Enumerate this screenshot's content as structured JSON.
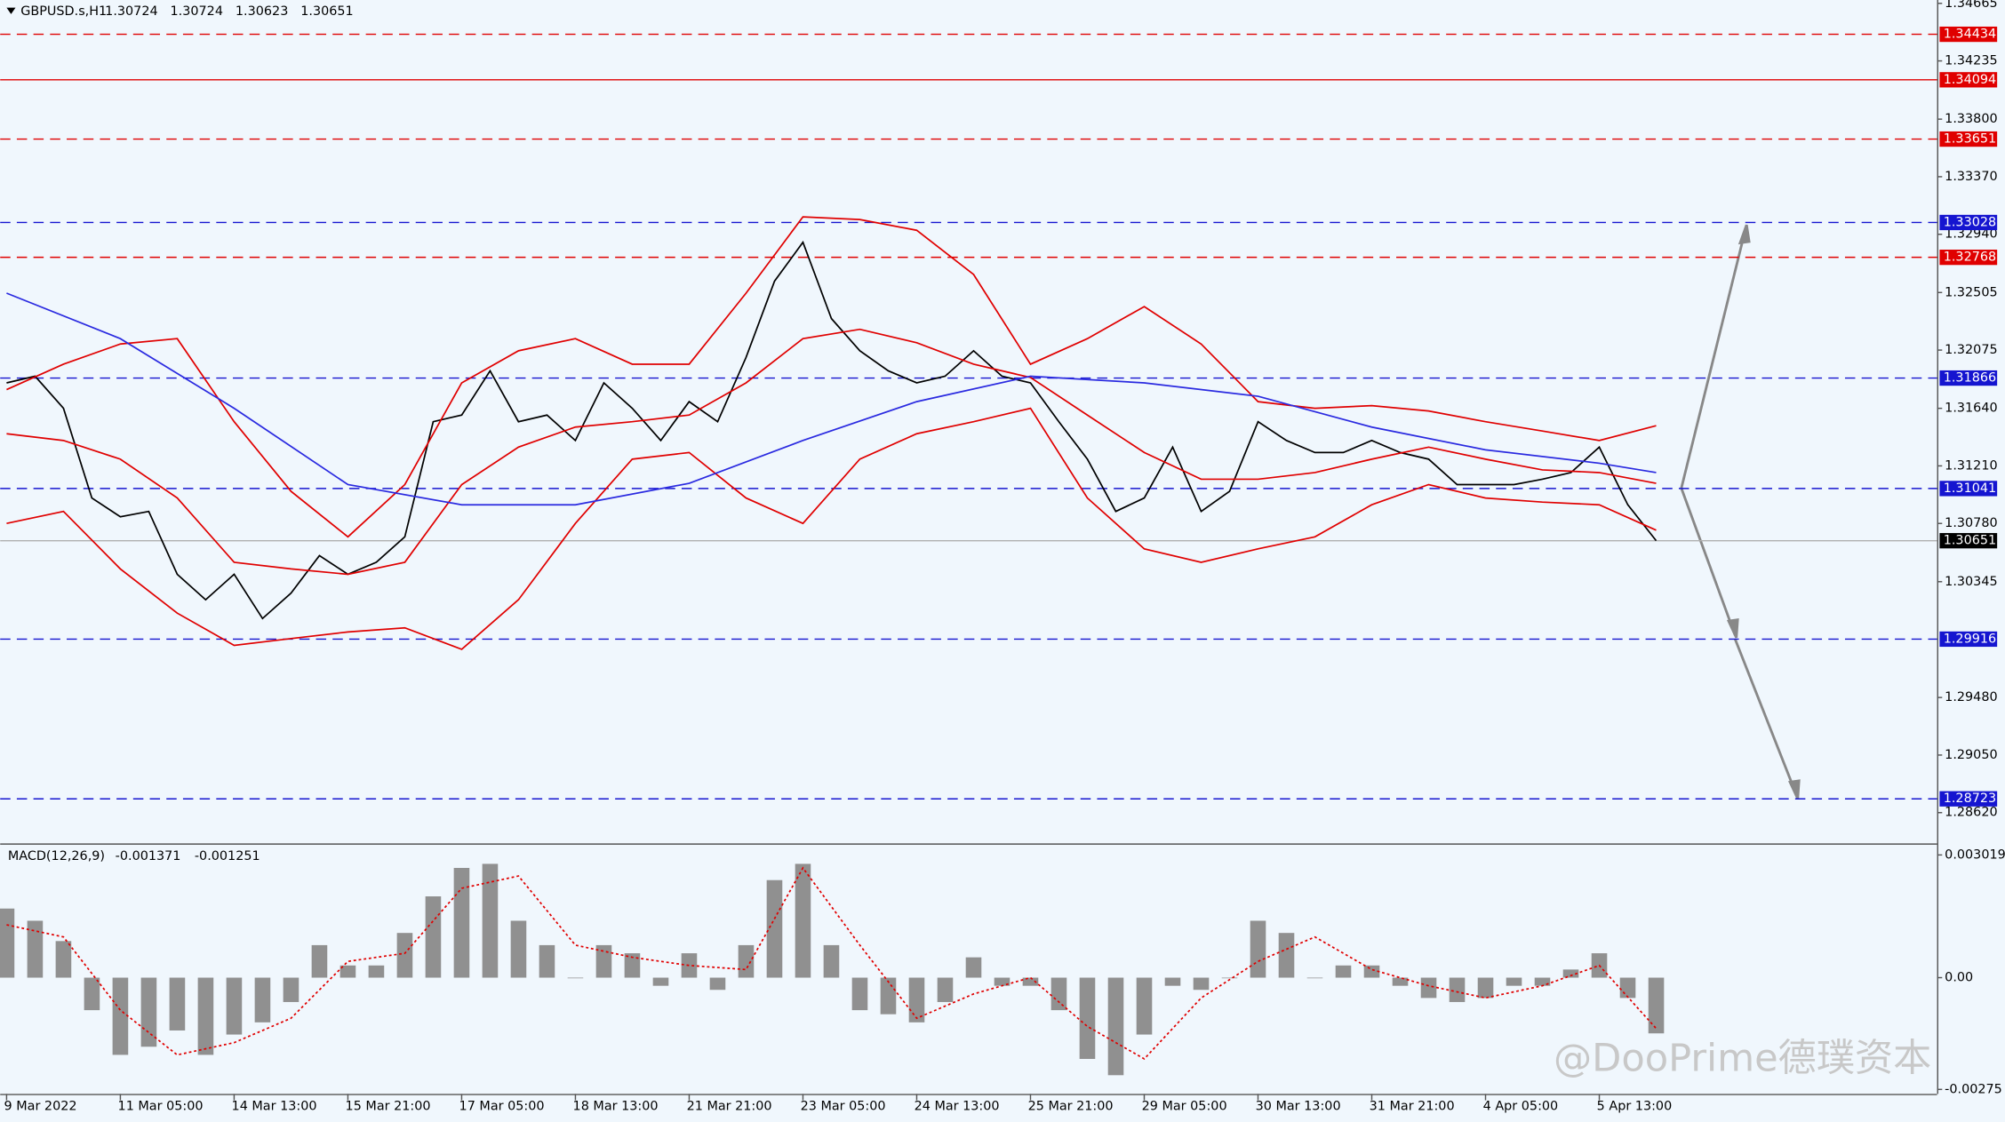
{
  "chart_data": [
    {
      "type": "price",
      "title": "GBPUSD.s,H1",
      "ohlc": [
        1.30724,
        1.30724,
        1.30623,
        1.30651
      ],
      "xlim": [
        -1.8,
        543
      ],
      "ylim": [
        1.2839,
        1.3469
      ],
      "xticks": [
        {
          "value": 0,
          "label": "9 Mar 2022"
        },
        {
          "value": 32,
          "label": "11 Mar 05:00"
        },
        {
          "value": 64,
          "label": "14 Mar 13:00"
        },
        {
          "value": 96,
          "label": "15 Mar 21:00"
        },
        {
          "value": 128,
          "label": "17 Mar 05:00"
        },
        {
          "value": 160,
          "label": "18 Mar 13:00"
        },
        {
          "value": 192,
          "label": "21 Mar 21:00"
        },
        {
          "value": 224,
          "label": "23 Mar 05:00"
        },
        {
          "value": 256,
          "label": "24 Mar 13:00"
        },
        {
          "value": 288,
          "label": "25 Mar 21:00"
        },
        {
          "value": 320,
          "label": "29 Mar 05:00"
        },
        {
          "value": 352,
          "label": "30 Mar 13:00"
        },
        {
          "value": 384,
          "label": "31 Mar 21:00"
        },
        {
          "value": 416,
          "label": "4 Apr 05:00"
        },
        {
          "value": 448,
          "label": "5 Apr 13:00"
        }
      ],
      "yticks": [
        1.34665,
        1.34235,
        {
          "value": 1.338,
          "label": "1.33800"
        },
        {
          "value": 1.3337,
          "label": "1.33370"
        },
        {
          "value": 1.3294,
          "label": "1.32940"
        },
        1.32505,
        1.32075,
        {
          "value": 1.3164,
          "label": "1.31640"
        },
        {
          "value": 1.3121,
          "label": "1.31210"
        },
        {
          "value": 1.3078,
          "label": "1.30780"
        },
        1.30345,
        {
          "value": 1.2948,
          "label": "1.29480"
        },
        {
          "value": 1.2905,
          "label": "1.29050"
        },
        {
          "value": 1.2862,
          "label": "1.28620"
        }
      ],
      "levels": [
        {
          "value": 1.34434,
          "color": "#e00000",
          "style": "dashed"
        },
        {
          "value": 1.34094,
          "color": "#e00000",
          "style": "solid"
        },
        {
          "value": 1.33651,
          "color": "#e00000",
          "style": "dashed"
        },
        {
          "value": 1.33028,
          "color": "#1515d0",
          "style": "dashed"
        },
        {
          "value": 1.32768,
          "color": "#e00000",
          "style": "dashed"
        },
        {
          "value": 1.31866,
          "color": "#1515d0",
          "style": "dashed"
        },
        {
          "value": 1.31041,
          "color": "#1515d0",
          "style": "dashed"
        },
        {
          "value": 1.30651,
          "color": "#000000",
          "style": "current"
        },
        {
          "value": 1.29916,
          "color": "#1515d0",
          "style": "dashed"
        },
        {
          "value": 1.28723,
          "color": "#1515d0",
          "style": "dashed"
        }
      ],
      "series": [
        {
          "name": "Close",
          "color": "#000000",
          "x": [
            0,
            8,
            16,
            24,
            32,
            40,
            48,
            56,
            64,
            72,
            80,
            88,
            96,
            104,
            112,
            120,
            128,
            136,
            144,
            152,
            160,
            168,
            176,
            184,
            192,
            200,
            208,
            216,
            224,
            232,
            240,
            248,
            256,
            264,
            272,
            280,
            288,
            296,
            304,
            312,
            320,
            328,
            336,
            344,
            352,
            360,
            368,
            376,
            384,
            392,
            400,
            408,
            416,
            424,
            432,
            440,
            448,
            456,
            464
          ],
          "values": [
            1.3183,
            1.3188,
            1.3164,
            1.3097,
            1.3083,
            1.3087,
            1.304,
            1.3021,
            1.304,
            1.3007,
            1.3026,
            1.3054,
            1.304,
            1.3049,
            1.3068,
            1.3154,
            1.3159,
            1.3192,
            1.3154,
            1.3159,
            1.314,
            1.3183,
            1.3164,
            1.314,
            1.3169,
            1.3154,
            1.3202,
            1.3259,
            1.3288,
            1.3231,
            1.3207,
            1.3192,
            1.3183,
            1.3188,
            1.3207,
            1.3188,
            1.3183,
            1.3154,
            1.3126,
            1.3087,
            1.3097,
            1.3135,
            1.3087,
            1.3102,
            1.3154,
            1.314,
            1.3131,
            1.3131,
            1.314,
            1.3131,
            1.3126,
            1.3107,
            1.3107,
            1.3107,
            1.3111,
            1.3116,
            1.3135,
            1.3092,
            1.30651
          ]
        },
        {
          "name": "BB Upper",
          "color": "#e00000",
          "x": [
            0,
            16,
            32,
            48,
            64,
            80,
            96,
            112,
            128,
            144,
            160,
            176,
            192,
            208,
            224,
            240,
            256,
            272,
            288,
            304,
            320,
            336,
            352,
            368,
            384,
            400,
            416,
            432,
            448,
            464
          ],
          "values": [
            1.3178,
            1.3197,
            1.3212,
            1.3216,
            1.3154,
            1.3102,
            1.3068,
            1.3107,
            1.3183,
            1.3207,
            1.3216,
            1.3197,
            1.3197,
            1.325,
            1.3307,
            1.3305,
            1.3297,
            1.3264,
            1.3197,
            1.3216,
            1.324,
            1.3212,
            1.3169,
            1.3164,
            1.3166,
            1.3162,
            1.3154,
            1.3147,
            1.314,
            1.3151
          ]
        },
        {
          "name": "BB Middle",
          "color": "#e00000",
          "x": [
            0,
            16,
            32,
            48,
            64,
            80,
            96,
            112,
            128,
            144,
            160,
            176,
            192,
            208,
            224,
            240,
            256,
            272,
            288,
            304,
            320,
            336,
            352,
            368,
            384,
            400,
            416,
            432,
            448,
            464
          ],
          "values": [
            1.3145,
            1.314,
            1.3126,
            1.3097,
            1.3049,
            1.3044,
            1.304,
            1.3049,
            1.3107,
            1.3135,
            1.315,
            1.3154,
            1.3159,
            1.3183,
            1.3216,
            1.3223,
            1.3213,
            1.3197,
            1.3187,
            1.3159,
            1.3131,
            1.3111,
            1.3111,
            1.3116,
            1.3126,
            1.3135,
            1.3126,
            1.3118,
            1.3116,
            1.3108
          ]
        },
        {
          "name": "BB Lower",
          "color": "#e00000",
          "x": [
            0,
            16,
            32,
            48,
            64,
            80,
            96,
            112,
            128,
            144,
            160,
            176,
            192,
            208,
            224,
            240,
            256,
            272,
            288,
            304,
            320,
            336,
            352,
            368,
            384,
            400,
            416,
            432,
            448,
            464
          ],
          "values": [
            1.3078,
            1.3087,
            1.3044,
            1.3011,
            1.2987,
            1.2992,
            1.2997,
            1.3,
            1.2984,
            1.3021,
            1.3078,
            1.3126,
            1.3131,
            1.3097,
            1.3078,
            1.3126,
            1.3145,
            1.3154,
            1.3164,
            1.3097,
            1.3059,
            1.3049,
            1.3059,
            1.3068,
            1.3092,
            1.3107,
            1.3097,
            1.3094,
            1.3092,
            1.3073
          ]
        },
        {
          "name": "MA",
          "color": "#2a2ae0",
          "x": [
            0,
            32,
            64,
            96,
            128,
            160,
            192,
            224,
            256,
            288,
            320,
            352,
            384,
            416,
            448,
            464
          ],
          "values": [
            1.325,
            1.3216,
            1.3164,
            1.3107,
            1.3092,
            1.3092,
            1.3108,
            1.314,
            1.3169,
            1.3188,
            1.3183,
            1.3173,
            1.315,
            1.3133,
            1.3123,
            1.3116
          ]
        }
      ]
    },
    {
      "type": "macd",
      "title": "MACD(12,26,9)",
      "macd": -0.001371,
      "signal": -0.001251,
      "ylim": [
        -0.00286,
        0.00324
      ],
      "yticks": [
        0.003019,
        {
          "value": 0,
          "label": "0.00"
        },
        -0.00275
      ],
      "series": [
        {
          "name": "Histogram",
          "color": "#909090",
          "x": [
            0,
            8,
            16,
            24,
            32,
            40,
            48,
            56,
            64,
            72,
            80,
            88,
            96,
            104,
            112,
            120,
            128,
            136,
            144,
            152,
            160,
            168,
            176,
            184,
            192,
            200,
            208,
            216,
            224,
            232,
            240,
            248,
            256,
            264,
            272,
            280,
            288,
            296,
            304,
            312,
            320,
            328,
            336,
            344,
            352,
            360,
            368,
            376,
            384,
            392,
            400,
            408,
            416,
            424,
            432,
            440,
            448,
            456,
            464
          ],
          "values": [
            0.0017,
            0.0014,
            0.0009,
            -0.0008,
            -0.0019,
            -0.0017,
            -0.0013,
            -0.0019,
            -0.0014,
            -0.0011,
            -0.0006,
            0.0008,
            0.0003,
            0.0003,
            0.0011,
            0.002,
            0.0027,
            0.0028,
            0.0014,
            0.0008,
            0,
            0.0008,
            0.0006,
            -0.0002,
            0.0006,
            -0.0003,
            0.0008,
            0.0024,
            0.0028,
            0.0008,
            -0.0008,
            -0.0009,
            -0.0011,
            -0.0006,
            0.0005,
            -0.0002,
            -0.0002,
            -0.0008,
            -0.002,
            -0.0024,
            -0.0014,
            -0.0002,
            -0.0003,
            0,
            0.0014,
            0.0011,
            0,
            0.0003,
            0.0003,
            -0.0002,
            -0.0005,
            -0.0006,
            -0.0005,
            -0.0002,
            -0.0002,
            0.0002,
            0.0006,
            -0.0005,
            -0.001371
          ]
        },
        {
          "name": "Signal",
          "color": "#e00000",
          "x": [
            0,
            16,
            32,
            48,
            64,
            80,
            96,
            112,
            128,
            144,
            160,
            176,
            192,
            208,
            224,
            240,
            256,
            272,
            288,
            304,
            320,
            336,
            352,
            368,
            384,
            400,
            416,
            432,
            448,
            464
          ],
          "values": [
            0.0013,
            0.001,
            -0.0008,
            -0.0019,
            -0.0016,
            -0.001,
            0.0004,
            0.0006,
            0.0022,
            0.0025,
            0.0008,
            0.0005,
            0.0003,
            0.0002,
            0.0027,
            0.0008,
            -0.001,
            -0.0004,
            0,
            -0.0012,
            -0.002,
            -0.0005,
            0.0004,
            0.001,
            0.0002,
            -0.0002,
            -0.0005,
            -0.0002,
            0.0003,
            -0.001251
          ]
        }
      ]
    }
  ],
  "watermark": "@DooPrime德璞资本"
}
